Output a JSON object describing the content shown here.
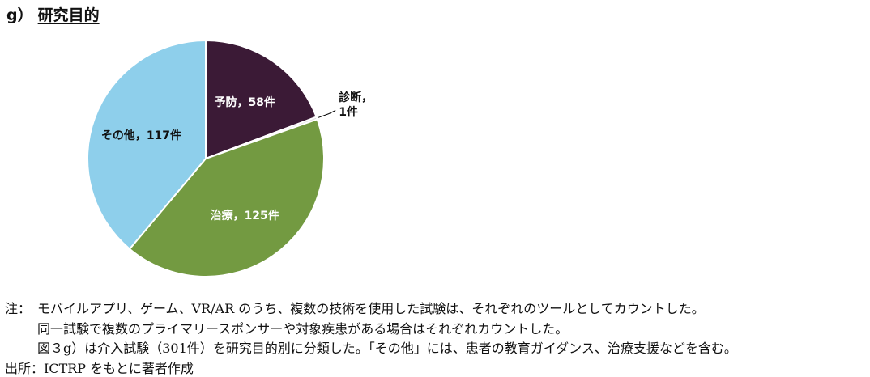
{
  "header": {
    "label": "g）",
    "title": "研究目的"
  },
  "chart_data": {
    "type": "pie",
    "values": [
      58,
      1,
      125,
      117
    ],
    "value_labels": [
      "予防，58件",
      "診断，1件",
      "治療，125件",
      "その他，117件"
    ],
    "colors": [
      "#3b1a36",
      "#d9d9d9",
      "#739a41",
      "#8ecfeb"
    ]
  },
  "notes": {
    "label": "注：",
    "lines": [
      "モバイルアプリ、ゲーム、VR/AR のうち、複数の技術を使用した試験は、それぞれのツールとしてカウントした。",
      "同一試験で複数のプライマリースポンサーや対象疾患がある場合はそれぞれカウントした。",
      "図３g）は介入試験（301件）を研究目的別に分類した。「その他」には、患者の教育ガイダンス、治療支援などを含む。"
    ]
  },
  "source": "出所：ICTRP をもとに著者作成"
}
